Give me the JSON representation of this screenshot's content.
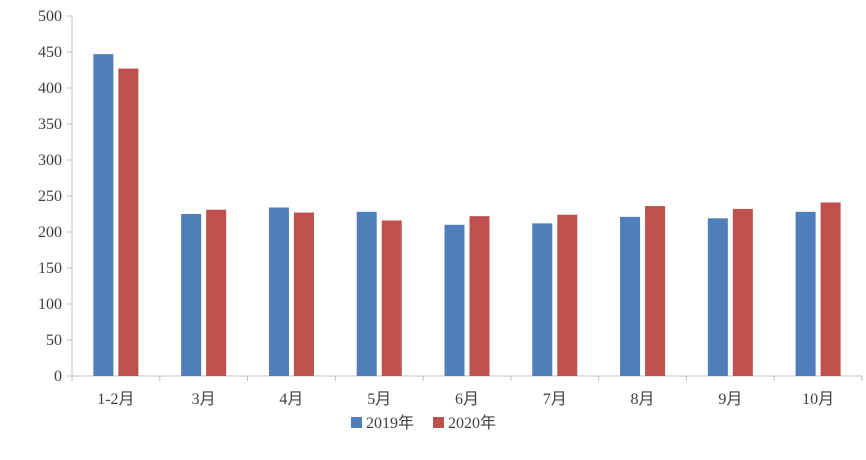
{
  "chart_data": {
    "type": "bar",
    "title": "",
    "xlabel": "",
    "ylabel": "",
    "ylim": [
      0,
      500
    ],
    "yticks": [
      0,
      50,
      100,
      150,
      200,
      250,
      300,
      350,
      400,
      450,
      500
    ],
    "grid": false,
    "legend_position": "bottom-center",
    "categories": [
      "1-2月",
      "3月",
      "4月",
      "5月",
      "6月",
      "7月",
      "8月",
      "9月",
      "10月"
    ],
    "series": [
      {
        "name": "2019年",
        "color": "#4F7EBB",
        "values": [
          447,
          225,
          234,
          228,
          210,
          212,
          221,
          219,
          228
        ]
      },
      {
        "name": "2020年",
        "color": "#C0504D",
        "values": [
          427,
          231,
          227,
          216,
          222,
          224,
          236,
          232,
          241
        ]
      }
    ]
  }
}
